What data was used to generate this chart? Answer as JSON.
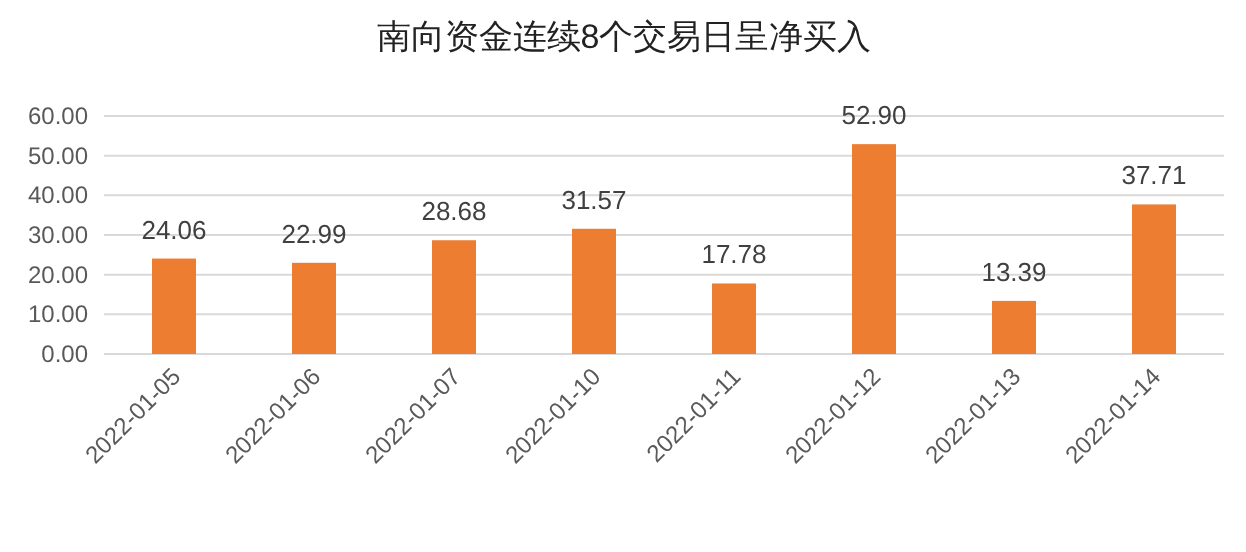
{
  "chart_data": {
    "type": "bar",
    "title": "南向资金连续8个交易日呈净买入",
    "categories": [
      "2022-01-05",
      "2022-01-06",
      "2022-01-07",
      "2022-01-10",
      "2022-01-11",
      "2022-01-12",
      "2022-01-13",
      "2022-01-14"
    ],
    "values": [
      24.06,
      22.99,
      28.68,
      31.57,
      17.78,
      52.9,
      13.39,
      37.71
    ],
    "value_labels": [
      "24.06",
      "22.99",
      "28.68",
      "31.57",
      "17.78",
      "52.90",
      "13.39",
      "37.71"
    ],
    "color": "#ed7d31",
    "ylim": [
      0,
      60
    ],
    "yticks": [
      {
        "value": 0,
        "label": "0.00"
      },
      {
        "value": 10,
        "label": "10.00"
      },
      {
        "value": 20,
        "label": "20.00"
      },
      {
        "value": 30,
        "label": "30.00"
      },
      {
        "value": 40,
        "label": "40.00"
      },
      {
        "value": 50,
        "label": "50.00"
      },
      {
        "value": 60,
        "label": "60.00"
      }
    ],
    "grid": "y"
  }
}
